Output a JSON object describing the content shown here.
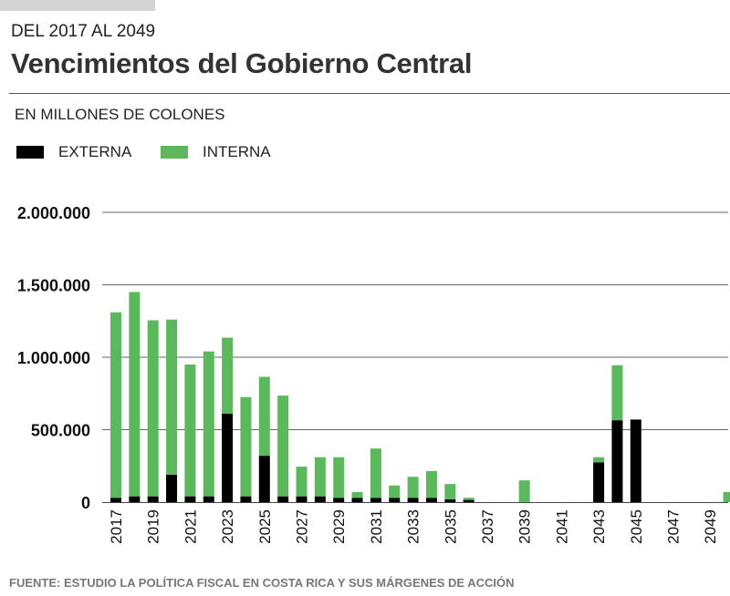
{
  "header": {
    "subtitle": "DEL 2017 AL 2049",
    "title": "Vencimientos del Gobierno Central",
    "units": "EN MILLONES DE COLONES"
  },
  "legend": [
    {
      "label": "EXTERNA",
      "color": "#000000"
    },
    {
      "label": "INTERNA",
      "color": "#5cb85c"
    }
  ],
  "footer": {
    "source": "FUENTE: ESTUDIO LA POLÍTICA FISCAL EN COSTA RICA Y SUS MÁRGENES DE ACCIÓN"
  },
  "chart_data": {
    "type": "bar",
    "stacked": true,
    "title": "Vencimientos del Gobierno Central",
    "ylabel": "EN MILLONES DE COLONES",
    "xlabel": "",
    "ylim": [
      0,
      2000000
    ],
    "yticks": [
      0,
      500000,
      1000000,
      1500000,
      2000000
    ],
    "ytick_labels": [
      "0",
      "500.000",
      "1.000.000",
      "1.500.000",
      "2.000.000"
    ],
    "grid": true,
    "legend_position": "top-left",
    "categories": [
      "2017",
      "2018",
      "2019",
      "2020",
      "2021",
      "2022",
      "2023",
      "2024",
      "2025",
      "2026",
      "2027",
      "2028",
      "2029",
      "2030",
      "2031",
      "2032",
      "2033",
      "2034",
      "2035",
      "2036",
      "2037",
      "2038",
      "2039",
      "2040",
      "2041",
      "2042",
      "2043",
      "2044",
      "2045",
      "2046",
      "2047",
      "2048",
      "2049",
      "2050"
    ],
    "tick_labels": [
      "2017",
      "2019",
      "2021",
      "2023",
      "2025",
      "2027",
      "2029",
      "2031",
      "2033",
      "2035",
      "2037",
      "2039",
      "2041",
      "2043",
      "2045",
      "2047",
      "2049"
    ],
    "series": [
      {
        "name": "EXTERNA",
        "color": "#000000",
        "values": [
          30000,
          40000,
          40000,
          190000,
          40000,
          40000,
          610000,
          40000,
          320000,
          40000,
          40000,
          40000,
          30000,
          30000,
          30000,
          30000,
          30000,
          30000,
          20000,
          15000,
          0,
          0,
          0,
          0,
          0,
          0,
          275000,
          565000,
          570000,
          0,
          0,
          0,
          0,
          0
        ]
      },
      {
        "name": "INTERNA",
        "color": "#5cb85c",
        "values": [
          1280000,
          1410000,
          1215000,
          1070000,
          910000,
          1000000,
          525000,
          685000,
          545000,
          695000,
          205000,
          270000,
          280000,
          40000,
          340000,
          85000,
          145000,
          185000,
          105000,
          15000,
          0,
          0,
          150000,
          0,
          0,
          0,
          35000,
          380000,
          0,
          0,
          0,
          0,
          0,
          70000
        ]
      }
    ]
  }
}
